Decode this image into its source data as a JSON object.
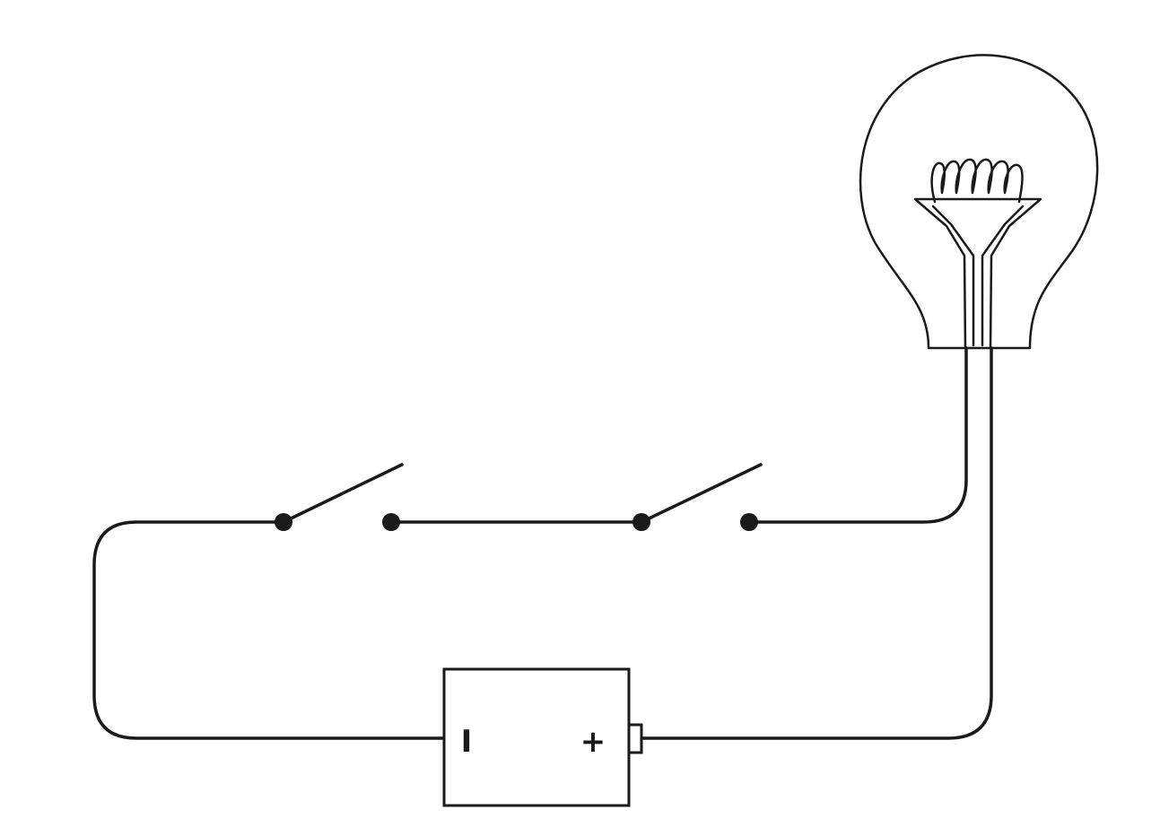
{
  "diagram": {
    "battery": {
      "negative_label": "I",
      "positive_label": "+"
    },
    "switches": [
      {
        "state": "open"
      },
      {
        "state": "open"
      }
    ]
  },
  "colors": {
    "line": "#1a1a1a",
    "background": "#ffffff"
  }
}
